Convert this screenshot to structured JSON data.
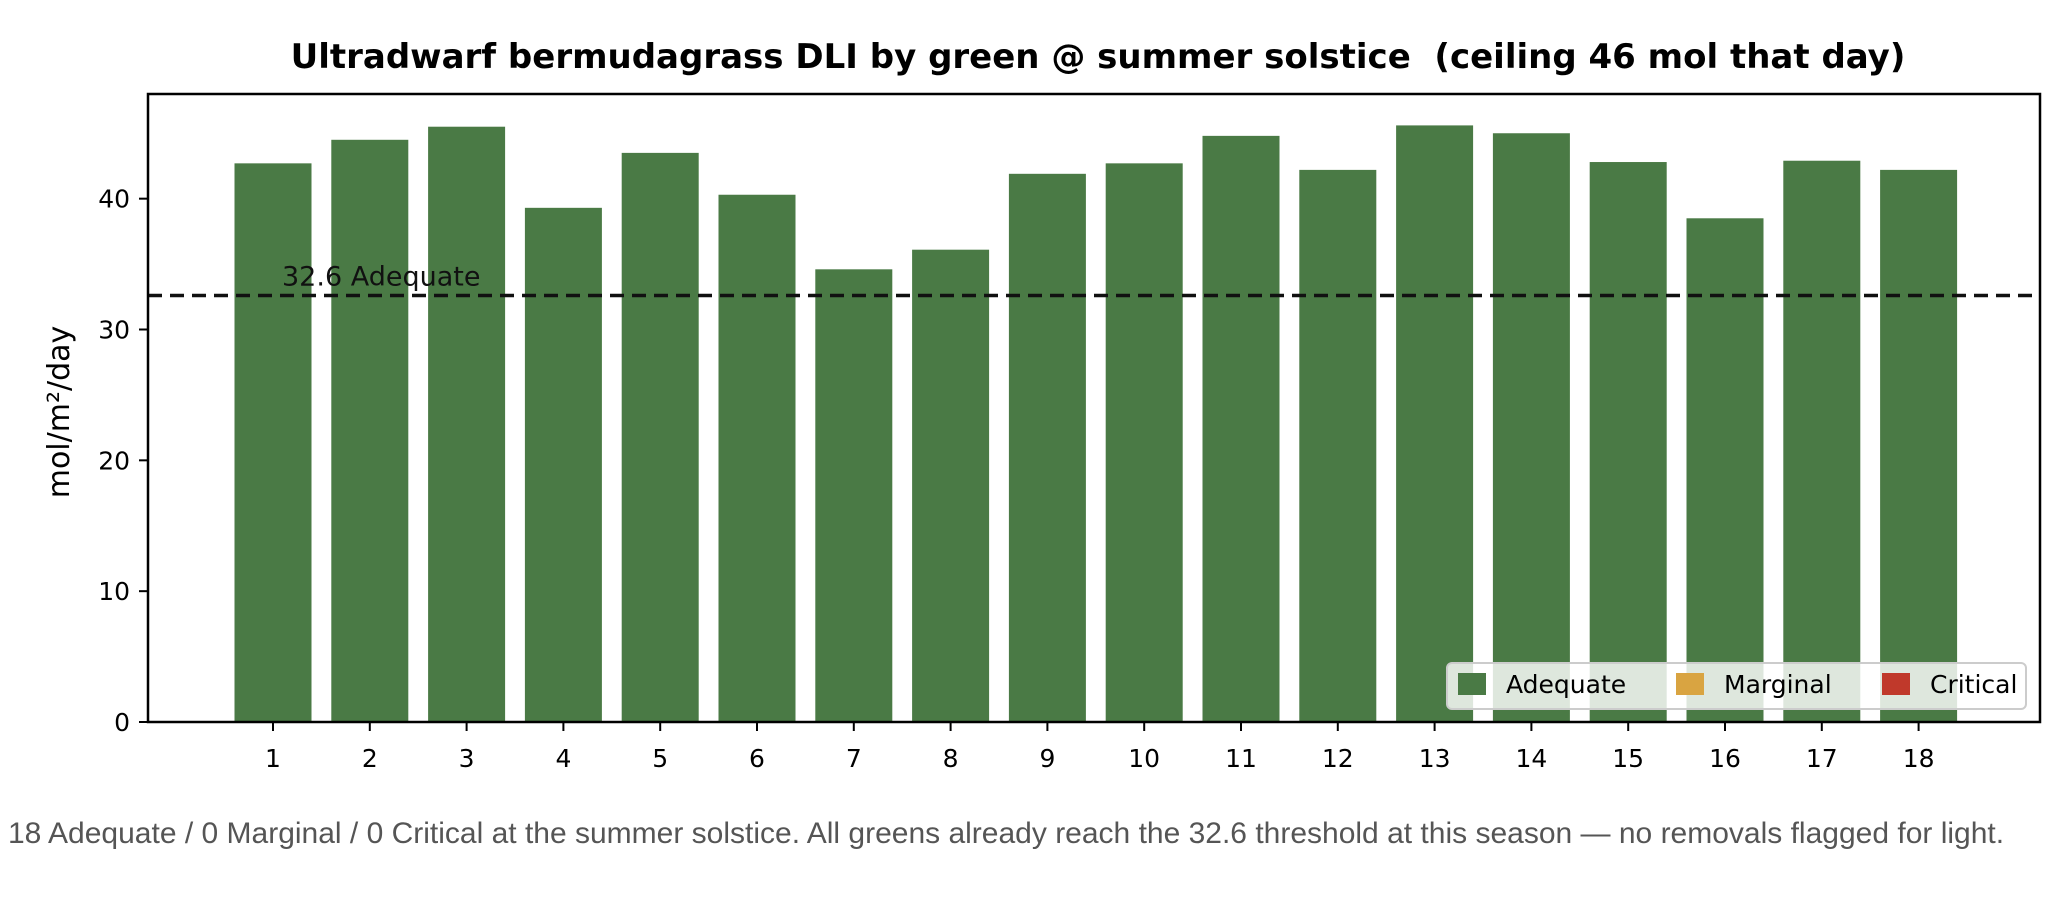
{
  "chart_data": {
    "type": "bar",
    "title": "Ultradwarf bermudagrass DLI by green @ summer solstice  (ceiling 46 mol that day)",
    "xlabel": "",
    "ylabel": "mol/m²/day",
    "ylim": [
      0,
      48
    ],
    "yticks": [
      0,
      10,
      20,
      30,
      40
    ],
    "categories": [
      "1",
      "2",
      "3",
      "4",
      "5",
      "6",
      "7",
      "8",
      "9",
      "10",
      "11",
      "12",
      "13",
      "14",
      "15",
      "16",
      "17",
      "18"
    ],
    "values": [
      42.7,
      44.5,
      45.5,
      39.3,
      43.5,
      40.3,
      34.6,
      36.1,
      41.9,
      42.7,
      44.8,
      42.2,
      45.6,
      45.0,
      42.8,
      38.5,
      42.9,
      42.2
    ],
    "status": [
      "Adequate",
      "Adequate",
      "Adequate",
      "Adequate",
      "Adequate",
      "Adequate",
      "Adequate",
      "Adequate",
      "Adequate",
      "Adequate",
      "Adequate",
      "Adequate",
      "Adequate",
      "Adequate",
      "Adequate",
      "Adequate",
      "Adequate",
      "Adequate"
    ],
    "threshold": {
      "value": 32.6,
      "label": "32.6 Adequate",
      "style": "dashed"
    },
    "legend": {
      "placement": "lower-right",
      "entries": [
        {
          "label": "Adequate",
          "color": "#4a7a45"
        },
        {
          "label": "Marginal",
          "color": "#d9a441"
        },
        {
          "label": "Critical",
          "color": "#c0392b"
        }
      ]
    },
    "grid": false
  },
  "caption": "18 Adequate / 0 Marginal / 0 Critical at the summer solstice. All greens already reach the 32.6 threshold at this season — no removals flagged for light."
}
